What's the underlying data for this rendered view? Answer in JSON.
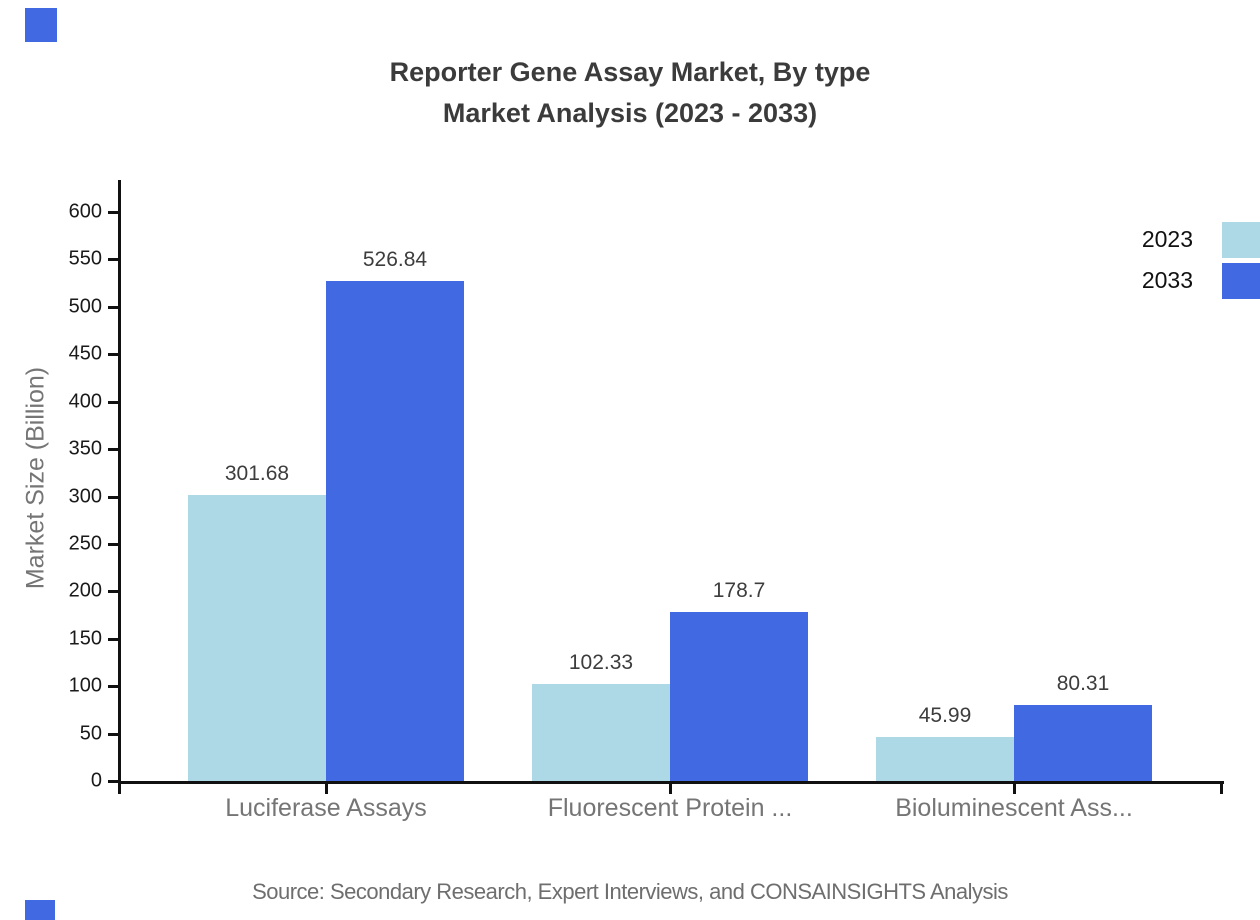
{
  "title": {
    "line1": "Reporter Gene Assay Market, By type",
    "line2": "Market Analysis (2023 - 2033)"
  },
  "legend": {
    "items": [
      {
        "label": "2023",
        "color": "#ADD8E6"
      },
      {
        "label": "2033",
        "color": "#4169E1"
      }
    ]
  },
  "source_note": "Source: Secondary Research, Expert Interviews, and CONSAINSIGHTS Analysis",
  "colors": {
    "series_2023": "#ADD8E6",
    "series_2033": "#4169E1",
    "axis": "#111111",
    "muted_text": "#757575",
    "brand_mark": "#4169E1"
  },
  "chart_data": {
    "type": "bar",
    "title": "Reporter Gene Assay Market, By type — Market Analysis (2023 - 2033)",
    "categories": [
      "Luciferase Assays",
      "Fluorescent Protein ...",
      "Bioluminescent Ass..."
    ],
    "series": [
      {
        "name": "2023",
        "color": "#ADD8E6",
        "values": [
          301.68,
          102.33,
          45.99
        ]
      },
      {
        "name": "2033",
        "color": "#4169E1",
        "values": [
          526.84,
          178.7,
          80.31
        ]
      }
    ],
    "value_labels": {
      "2023": [
        "301.68",
        "102.33",
        "45.99"
      ],
      "2033": [
        "526.84",
        "178.7",
        "80.31"
      ]
    },
    "xlabel": "",
    "ylabel": "Market Size (Billion)",
    "ylim": [
      0,
      600
    ],
    "ytick_step": 50,
    "yticks": [
      0,
      50,
      100,
      150,
      200,
      250,
      300,
      350,
      400,
      450,
      500,
      550,
      600
    ],
    "grid": false,
    "legend_position": "top-right",
    "bar_orientation": "vertical"
  }
}
